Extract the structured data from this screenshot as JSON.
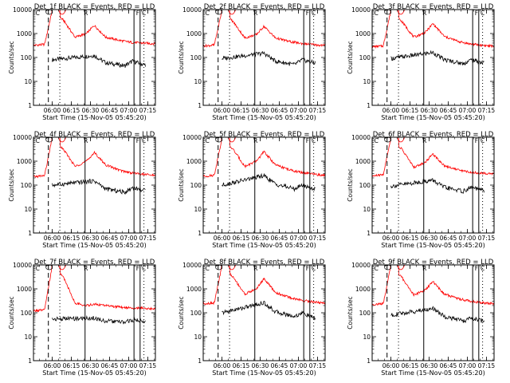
{
  "figure": {
    "xaxis_label": "Start Time (15-Nov-05 05:45:20)",
    "yaxis_label": "Counts/sec",
    "colors": {
      "events": "#000000",
      "lld": "#ff0000",
      "axes": "#000000"
    }
  },
  "chart_data": [
    {
      "type": "line",
      "title": "Det_1f BLACK = Events, RED = LLD",
      "xlabel": "Start Time (15-Nov-05 05:45:20)",
      "ylabel": "Counts/sec",
      "yscale": "log",
      "ylim": [
        1,
        10000
      ],
      "x_ticks": [
        "06:00",
        "06:15",
        "06:30",
        "06:45",
        "07:00",
        "07:15"
      ],
      "y_ticks": [
        "1",
        "10",
        "100",
        "1000",
        "10000"
      ],
      "legend": "title",
      "grid": false,
      "annotations": [
        "C",
        "R",
        "F",
        "C"
      ],
      "series": [
        {
          "name": "Events",
          "color": "#000000",
          "x": [
            6.0,
            6.55,
            6.7,
            6.95,
            7.05,
            7.2
          ],
          "y": [
            80,
            120,
            60,
            45,
            70,
            50
          ]
        },
        {
          "name": "LLD",
          "color": "#ff0000",
          "x": [
            5.75,
            5.9,
            6.0,
            6.15,
            6.3,
            6.45,
            6.55,
            6.7,
            6.9,
            7.05,
            7.3
          ],
          "y": [
            320,
            350,
            9000,
            3500,
            700,
            1000,
            2200,
            700,
            500,
            420,
            380
          ]
        }
      ]
    },
    {
      "type": "line",
      "title": "Det_2f BLACK = Events, RED = LLD",
      "xlabel": "Start Time (15-Nov-05 05:45:20)",
      "ylabel": "Counts/sec",
      "yscale": "log",
      "ylim": [
        1,
        10000
      ],
      "x_ticks": [
        "06:00",
        "06:15",
        "06:30",
        "06:45",
        "07:00",
        "07:15"
      ],
      "y_ticks": [
        "1",
        "10",
        "100",
        "1000",
        "10000"
      ],
      "legend": "title",
      "grid": false,
      "annotations": [
        "C",
        "R",
        "F",
        "C"
      ],
      "series": [
        {
          "name": "Events",
          "color": "#000000",
          "x": [
            6.0,
            6.55,
            6.7,
            6.95,
            7.05,
            7.2
          ],
          "y": [
            90,
            150,
            70,
            50,
            80,
            60
          ]
        },
        {
          "name": "LLD",
          "color": "#ff0000",
          "x": [
            5.75,
            5.9,
            6.0,
            6.15,
            6.3,
            6.45,
            6.55,
            6.7,
            6.9,
            7.05,
            7.3
          ],
          "y": [
            300,
            330,
            9000,
            3000,
            650,
            900,
            2000,
            650,
            450,
            380,
            320
          ]
        }
      ]
    },
    {
      "type": "line",
      "title": "Det_3f BLACK = Events, RED = LLD",
      "xlabel": "Start Time (15-Nov-05 05:45:20)",
      "ylabel": "Counts/sec",
      "yscale": "log",
      "ylim": [
        1,
        10000
      ],
      "x_ticks": [
        "06:00",
        "06:15",
        "06:30",
        "06:45",
        "07:00",
        "07:15"
      ],
      "y_ticks": [
        "1",
        "10",
        "100",
        "1000",
        "10000"
      ],
      "legend": "title",
      "grid": false,
      "annotations": [
        "C",
        "R",
        "F",
        "C"
      ],
      "series": [
        {
          "name": "Events",
          "color": "#000000",
          "x": [
            6.0,
            6.55,
            6.7,
            6.95,
            7.05,
            7.2
          ],
          "y": [
            90,
            160,
            80,
            55,
            80,
            60
          ]
        },
        {
          "name": "LLD",
          "color": "#ff0000",
          "x": [
            5.75,
            5.9,
            6.0,
            6.15,
            6.3,
            6.45,
            6.55,
            6.7,
            6.9,
            7.05,
            7.3
          ],
          "y": [
            280,
            300,
            9000,
            3000,
            700,
            1100,
            2600,
            750,
            450,
            360,
            300
          ]
        }
      ]
    },
    {
      "type": "line",
      "title": "Det_4f BLACK = Events, RED = LLD",
      "xlabel": "Start Time (15-Nov-05 05:45:20)",
      "ylabel": "Counts/sec",
      "yscale": "log",
      "ylim": [
        1,
        10000
      ],
      "x_ticks": [
        "06:00",
        "06:15",
        "06:30",
        "06:45",
        "07:00",
        "07:15"
      ],
      "y_ticks": [
        "1",
        "10",
        "100",
        "1000",
        "10000"
      ],
      "legend": "title",
      "grid": false,
      "annotations": [
        "C",
        "R",
        "F",
        "C"
      ],
      "series": [
        {
          "name": "Events",
          "color": "#000000",
          "x": [
            6.0,
            6.55,
            6.7,
            6.95,
            7.05,
            7.2
          ],
          "y": [
            100,
            150,
            70,
            50,
            80,
            60
          ]
        },
        {
          "name": "LLD",
          "color": "#ff0000",
          "x": [
            5.75,
            5.9,
            6.0,
            6.15,
            6.3,
            6.45,
            6.55,
            6.7,
            6.9,
            7.05,
            7.3
          ],
          "y": [
            220,
            250,
            9000,
            3000,
            600,
            1000,
            2300,
            700,
            400,
            320,
            260
          ]
        }
      ]
    },
    {
      "type": "line",
      "title": "Det_5f BLACK = Events, RED = LLD",
      "xlabel": "Start Time (15-Nov-05 05:45:20)",
      "ylabel": "Counts/sec",
      "yscale": "log",
      "ylim": [
        1,
        10000
      ],
      "x_ticks": [
        "06:00",
        "06:15",
        "06:30",
        "06:45",
        "07:00",
        "07:15"
      ],
      "y_ticks": [
        "1",
        "10",
        "100",
        "1000",
        "10000"
      ],
      "legend": "title",
      "grid": false,
      "annotations": [
        "C",
        "R",
        "F",
        "C"
      ],
      "series": [
        {
          "name": "Events",
          "color": "#000000",
          "x": [
            6.0,
            6.55,
            6.7,
            6.95,
            7.05,
            7.2
          ],
          "y": [
            100,
            250,
            110,
            70,
            100,
            70
          ]
        },
        {
          "name": "LLD",
          "color": "#ff0000",
          "x": [
            5.75,
            5.9,
            6.0,
            6.15,
            6.3,
            6.45,
            6.55,
            6.7,
            6.9,
            7.05,
            7.3
          ],
          "y": [
            230,
            260,
            9000,
            3000,
            600,
            1000,
            2500,
            700,
            420,
            330,
            260
          ]
        }
      ]
    },
    {
      "type": "line",
      "title": "Det_6f BLACK = Events, RED = LLD",
      "xlabel": "Start Time (15-Nov-05 05:45:20)",
      "ylabel": "Counts/sec",
      "yscale": "log",
      "ylim": [
        1,
        10000
      ],
      "x_ticks": [
        "06:00",
        "06:15",
        "06:30",
        "06:45",
        "07:00",
        "07:15"
      ],
      "y_ticks": [
        "1",
        "10",
        "100",
        "1000",
        "10000"
      ],
      "legend": "title",
      "grid": false,
      "annotations": [
        "C",
        "R",
        "F",
        "C"
      ],
      "series": [
        {
          "name": "Events",
          "color": "#000000",
          "x": [
            6.0,
            6.55,
            6.7,
            6.95,
            7.05,
            7.2
          ],
          "y": [
            90,
            160,
            80,
            55,
            80,
            60
          ]
        },
        {
          "name": "LLD",
          "color": "#ff0000",
          "x": [
            5.75,
            5.9,
            6.0,
            6.15,
            6.3,
            6.45,
            6.55,
            6.7,
            6.9,
            7.05,
            7.3
          ],
          "y": [
            240,
            270,
            9000,
            3000,
            550,
            900,
            2000,
            650,
            420,
            340,
            300
          ]
        }
      ]
    },
    {
      "type": "line",
      "title": "Det_7f BLACK = Events, RED = LLD",
      "xlabel": "Start Time (15-Nov-05 05:45:20)",
      "ylabel": "Counts/sec",
      "yscale": "log",
      "ylim": [
        1,
        10000
      ],
      "x_ticks": [
        "06:00",
        "06:15",
        "06:30",
        "06:45",
        "07:00",
        "07:15"
      ],
      "y_ticks": [
        "1",
        "10",
        "100",
        "1000",
        "10000"
      ],
      "legend": "title",
      "grid": false,
      "annotations": [
        "C",
        "R",
        "F",
        "C"
      ],
      "series": [
        {
          "name": "Events",
          "color": "#000000",
          "x": [
            6.0,
            6.55,
            6.7,
            6.95,
            7.05,
            7.2
          ],
          "y": [
            55,
            60,
            45,
            40,
            50,
            45
          ]
        },
        {
          "name": "LLD",
          "color": "#ff0000",
          "x": [
            5.75,
            5.9,
            6.0,
            6.15,
            6.3,
            6.45,
            6.55,
            6.7,
            6.9,
            7.05,
            7.3
          ],
          "y": [
            120,
            130,
            9000,
            3000,
            250,
            200,
            230,
            200,
            170,
            160,
            150
          ]
        }
      ]
    },
    {
      "type": "line",
      "title": "Det_8f BLACK = Events, RED = LLD",
      "xlabel": "Start Time (15-Nov-05 05:45:20)",
      "ylabel": "Counts/sec",
      "yscale": "log",
      "ylim": [
        1,
        10000
      ],
      "x_ticks": [
        "06:00",
        "06:15",
        "06:30",
        "06:45",
        "07:00",
        "07:15"
      ],
      "y_ticks": [
        "1",
        "10",
        "100",
        "1000",
        "10000"
      ],
      "legend": "title",
      "grid": false,
      "annotations": [
        "C",
        "R",
        "F",
        "C"
      ],
      "series": [
        {
          "name": "Events",
          "color": "#000000",
          "x": [
            6.0,
            6.55,
            6.7,
            6.95,
            7.05,
            7.2
          ],
          "y": [
            100,
            260,
            110,
            70,
            100,
            60
          ]
        },
        {
          "name": "LLD",
          "color": "#ff0000",
          "x": [
            5.75,
            5.9,
            6.0,
            6.15,
            6.3,
            6.45,
            6.55,
            6.7,
            6.9,
            7.05,
            7.3
          ],
          "y": [
            240,
            260,
            9000,
            3000,
            600,
            1000,
            2700,
            700,
            420,
            330,
            260
          ]
        }
      ]
    },
    {
      "type": "line",
      "title": "Det_9f BLACK = Events, RED = LLD",
      "xlabel": "Start Time (15-Nov-05 05:45:20)",
      "ylabel": "Counts/sec",
      "yscale": "log",
      "ylim": [
        1,
        10000
      ],
      "x_ticks": [
        "06:00",
        "06:15",
        "06:30",
        "06:45",
        "07:00",
        "07:15"
      ],
      "y_ticks": [
        "1",
        "10",
        "100",
        "1000",
        "10000"
      ],
      "legend": "title",
      "grid": false,
      "annotations": [
        "C",
        "R",
        "F",
        "C"
      ],
      "series": [
        {
          "name": "Events",
          "color": "#000000",
          "x": [
            6.0,
            6.55,
            6.7,
            6.95,
            7.05,
            7.2
          ],
          "y": [
            80,
            150,
            70,
            45,
            60,
            45
          ]
        },
        {
          "name": "LLD",
          "color": "#ff0000",
          "x": [
            5.75,
            5.9,
            6.0,
            6.15,
            6.3,
            6.45,
            6.55,
            6.7,
            6.9,
            7.05,
            7.3
          ],
          "y": [
            220,
            240,
            9000,
            2800,
            550,
            900,
            2000,
            600,
            380,
            300,
            240
          ]
        }
      ]
    }
  ]
}
